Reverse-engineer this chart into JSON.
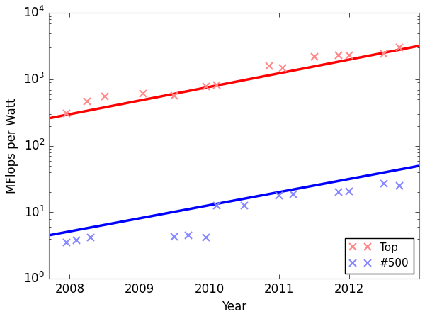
{
  "xlabel": "Year",
  "ylabel": "MFlops per Watt",
  "xlim": [
    2007.7,
    2013.0
  ],
  "ylim": [
    1,
    10000
  ],
  "background_color": "#ffffff",
  "top_x": [
    2007.95,
    2008.25,
    2008.5,
    2009.05,
    2009.5,
    2009.95,
    2010.1,
    2010.85,
    2011.05,
    2011.5,
    2011.85,
    2012.0,
    2012.5,
    2012.72
  ],
  "top_y": [
    310,
    470,
    550,
    620,
    570,
    790,
    820,
    1600,
    1500,
    2200,
    2300,
    2300,
    2400,
    3000
  ],
  "bot_x": [
    2007.95,
    2008.1,
    2008.3,
    2009.5,
    2009.7,
    2009.95,
    2010.1,
    2010.5,
    2011.0,
    2011.2,
    2011.85,
    2012.0,
    2012.5,
    2012.72
  ],
  "bot_y": [
    3.5,
    3.8,
    4.2,
    4.3,
    4.5,
    4.2,
    12.5,
    12.5,
    18.0,
    18.5,
    20.0,
    20.5,
    27.0,
    25.0
  ],
  "top_fit_x": [
    2007.7,
    2013.0
  ],
  "top_fit_y": [
    260,
    3200
  ],
  "bot_fit_x": [
    2007.7,
    2013.0
  ],
  "bot_fit_y": [
    4.5,
    50
  ],
  "top_color": "#ff0000",
  "bot_color": "#0000ff",
  "top_marker_color": "#ff8888",
  "bot_marker_color": "#8888ff",
  "line_width": 2.5,
  "marker_size": 7,
  "legend_loc": "lower right",
  "top_label": "Top",
  "bot_label": "#500",
  "xticks": [
    2008,
    2009,
    2010,
    2011,
    2012
  ],
  "yticks": [
    1,
    10,
    100,
    1000,
    10000
  ]
}
